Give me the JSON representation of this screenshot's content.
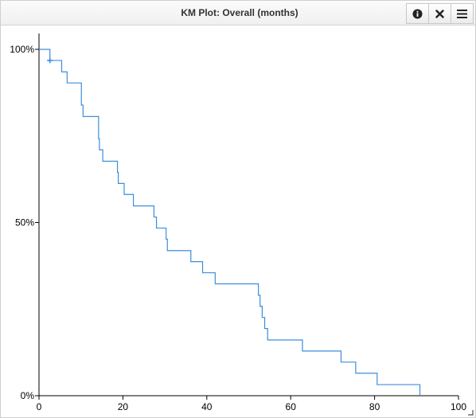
{
  "window": {
    "title": "KM Plot: Overall (months)"
  },
  "toolbar": {
    "buttons": [
      {
        "name": "info-button",
        "icon": "info-icon"
      },
      {
        "name": "close-button",
        "icon": "close-icon"
      },
      {
        "name": "menu-button",
        "icon": "hamburger-menu-icon"
      }
    ]
  },
  "colors": {
    "curve": "#3a8fdc",
    "axis": "#000000"
  },
  "chart_data": {
    "type": "line",
    "step": true,
    "title": "",
    "xlabel": "",
    "ylabel": "",
    "xlim": [
      0,
      100
    ],
    "ylim": [
      0,
      100
    ],
    "x_ticks": [
      0,
      20,
      40,
      60,
      80,
      100
    ],
    "x_tick_labels": [
      "0",
      "20",
      "40",
      "60",
      "80",
      "100"
    ],
    "y_ticks": [
      0,
      50,
      100
    ],
    "y_tick_labels": [
      "0%",
      "50%",
      "100%"
    ],
    "grid": false,
    "series": [
      {
        "x": [
          0,
          2.6,
          5.4,
          6.7,
          10.1,
          10.5,
          10.9,
          14.2,
          14.4,
          15.2,
          18.7,
          18.9,
          19.5,
          20.3,
          22.5,
          27.4,
          28.0,
          30.3,
          30.6,
          36.2,
          39.0,
          42.0,
          52.3,
          52.7,
          53.2,
          53.8,
          54.5,
          62.8,
          72.0,
          75.5,
          80.6,
          90.8
        ],
        "y": [
          100,
          96.8,
          93.5,
          90.3,
          83.9,
          80.6,
          80.6,
          74.2,
          71.0,
          67.7,
          64.5,
          61.3,
          61.3,
          58.1,
          54.8,
          51.6,
          48.4,
          45.2,
          41.9,
          38.7,
          35.5,
          32.3,
          29.0,
          25.8,
          22.6,
          19.4,
          16.1,
          12.9,
          9.7,
          6.5,
          3.2,
          0
        ]
      }
    ],
    "censored": [
      {
        "x": 2.6,
        "y": 96.8
      }
    ]
  }
}
